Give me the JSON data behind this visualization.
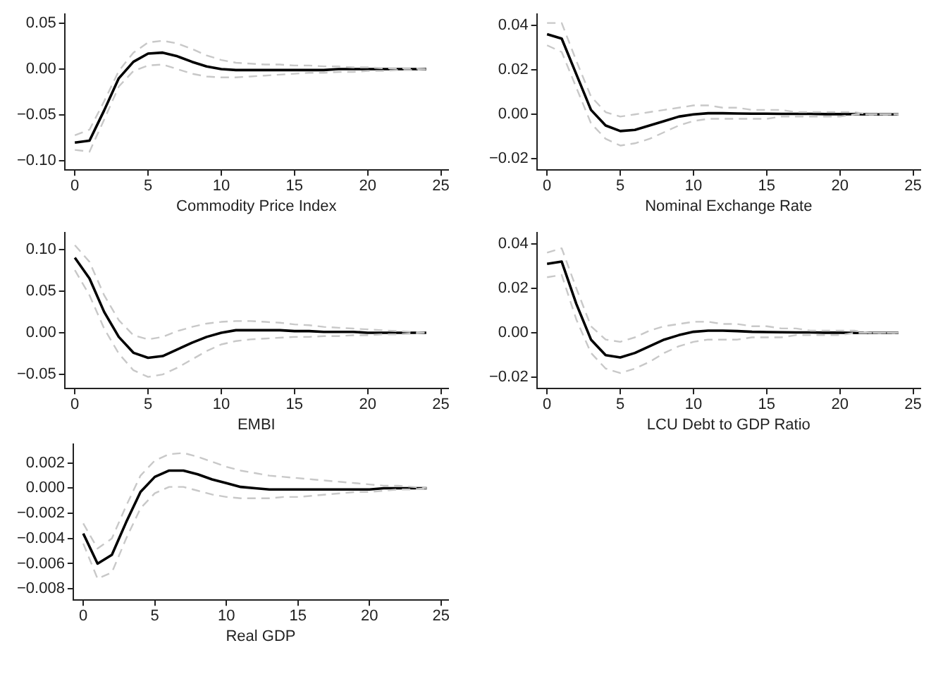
{
  "chart_data": [
    {
      "type": "line",
      "xlabel": "Commodity Price Index",
      "x": [
        0,
        1,
        2,
        3,
        4,
        5,
        6,
        7,
        8,
        9,
        10,
        11,
        12,
        13,
        14,
        15,
        16,
        17,
        18,
        19,
        20,
        21,
        22,
        23,
        24
      ],
      "xlim": [
        -0.7,
        25.5
      ],
      "xticks": [
        0,
        5,
        10,
        15,
        20,
        25
      ],
      "ylim": [
        -0.11,
        0.06
      ],
      "yticks": [
        {
          "value": -0.1,
          "label": "−0.10"
        },
        {
          "value": -0.05,
          "label": "−0.05"
        },
        {
          "value": 0,
          "label": "0.00"
        },
        {
          "value": 0.05,
          "label": "0.05"
        }
      ],
      "grid": false,
      "legend": false,
      "series": [
        {
          "color": "#c8c8c8",
          "line_style": "dashed",
          "values": [
            -0.088,
            -0.09,
            -0.055,
            -0.019,
            -0.002,
            0.004,
            0.005,
            0.0,
            -0.005,
            -0.008,
            -0.009,
            -0.009,
            -0.008,
            -0.007,
            -0.006,
            -0.005,
            -0.004,
            -0.004,
            -0.003,
            -0.003,
            -0.002,
            -0.002,
            -0.001,
            -0.001,
            0.0
          ]
        },
        {
          "color": "#c8c8c8",
          "line_style": "dashed",
          "values": [
            -0.072,
            -0.066,
            -0.035,
            -0.002,
            0.018,
            0.029,
            0.031,
            0.028,
            0.022,
            0.015,
            0.01,
            0.007,
            0.006,
            0.005,
            0.005,
            0.004,
            0.004,
            0.003,
            0.003,
            0.002,
            0.002,
            0.001,
            0.001,
            0.001,
            0.0
          ]
        },
        {
          "color": "#000000",
          "values": [
            -0.08,
            -0.078,
            -0.045,
            -0.01,
            0.008,
            0.017,
            0.018,
            0.014,
            0.008,
            0.003,
            0.0,
            -0.001,
            -0.001,
            -0.001,
            -0.001,
            -0.001,
            -0.001,
            -0.001,
            0,
            0,
            0,
            0,
            0,
            0,
            0
          ]
        }
      ]
    },
    {
      "type": "line",
      "xlabel": "Nominal Exchange Rate",
      "x": [
        0,
        1,
        2,
        3,
        4,
        5,
        6,
        7,
        8,
        9,
        10,
        11,
        12,
        13,
        14,
        15,
        16,
        17,
        18,
        19,
        20,
        21,
        22,
        23,
        24
      ],
      "xlim": [
        -0.7,
        25.5
      ],
      "xticks": [
        0,
        5,
        10,
        15,
        20,
        25
      ],
      "ylim": [
        -0.025,
        0.045
      ],
      "yticks": [
        {
          "value": -0.02,
          "label": "−0.02"
        },
        {
          "value": 0,
          "label": "0.00"
        },
        {
          "value": 0.02,
          "label": "0.02"
        },
        {
          "value": 0.04,
          "label": "0.04"
        }
      ],
      "grid": false,
      "legend": false,
      "series": [
        {
          "color": "#c8c8c8",
          "line_style": "dashed",
          "values": [
            0.031,
            0.028,
            0.012,
            -0.004,
            -0.011,
            -0.014,
            -0.013,
            -0.011,
            -0.008,
            -0.005,
            -0.003,
            -0.002,
            -0.002,
            -0.002,
            -0.002,
            -0.002,
            -0.001,
            -0.001,
            -0.001,
            -0.001,
            -0.001,
            0,
            0,
            0,
            0
          ]
        },
        {
          "color": "#c8c8c8",
          "line_style": "dashed",
          "values": [
            0.041,
            0.041,
            0.024,
            0.008,
            0.001,
            -0.001,
            0.0,
            0.001,
            0.002,
            0.003,
            0.004,
            0.004,
            0.003,
            0.003,
            0.002,
            0.002,
            0.002,
            0.001,
            0.001,
            0.001,
            0.001,
            0.001,
            0,
            0,
            0
          ]
        },
        {
          "color": "#000000",
          "values": [
            0.036,
            0.034,
            0.018,
            0.002,
            -0.005,
            -0.0075,
            -0.007,
            -0.005,
            -0.003,
            -0.001,
            0.0,
            0.0005,
            0.0005,
            0.0004,
            0.0003,
            0.0003,
            0.0002,
            0.0002,
            0.0002,
            0.0001,
            0.0001,
            0.0001,
            0,
            0,
            0
          ]
        }
      ]
    },
    {
      "type": "line",
      "xlabel": "EMBI",
      "x": [
        0,
        1,
        2,
        3,
        4,
        5,
        6,
        7,
        8,
        9,
        10,
        11,
        12,
        13,
        14,
        15,
        16,
        17,
        18,
        19,
        20,
        21,
        22,
        23,
        24
      ],
      "xlim": [
        -0.7,
        25.5
      ],
      "xticks": [
        0,
        5,
        10,
        15,
        20,
        25
      ],
      "ylim": [
        -0.067,
        0.12
      ],
      "yticks": [
        {
          "value": -0.05,
          "label": "−0.05"
        },
        {
          "value": 0,
          "label": "0.00"
        },
        {
          "value": 0.05,
          "label": "0.05"
        },
        {
          "value": 0.1,
          "label": "0.10"
        }
      ],
      "grid": false,
      "legend": false,
      "series": [
        {
          "color": "#c8c8c8",
          "line_style": "dashed",
          "values": [
            0.075,
            0.045,
            0.005,
            -0.025,
            -0.045,
            -0.053,
            -0.05,
            -0.042,
            -0.032,
            -0.022,
            -0.014,
            -0.01,
            -0.008,
            -0.007,
            -0.006,
            -0.005,
            -0.005,
            -0.004,
            -0.004,
            -0.003,
            -0.003,
            -0.002,
            -0.002,
            -0.001,
            0.0
          ]
        },
        {
          "color": "#c8c8c8",
          "line_style": "dashed",
          "values": [
            0.105,
            0.085,
            0.045,
            0.015,
            -0.003,
            -0.008,
            -0.005,
            0.002,
            0.007,
            0.011,
            0.013,
            0.014,
            0.014,
            0.013,
            0.012,
            0.01,
            0.009,
            0.007,
            0.006,
            0.005,
            0.004,
            0.003,
            0.002,
            0.001,
            0.0
          ]
        },
        {
          "color": "#000000",
          "values": [
            0.09,
            0.065,
            0.025,
            -0.005,
            -0.024,
            -0.03,
            -0.028,
            -0.02,
            -0.012,
            -0.005,
            0.0,
            0.003,
            0.003,
            0.003,
            0.003,
            0.002,
            0.002,
            0.001,
            0.001,
            0.001,
            0.0,
            0,
            0,
            0,
            0
          ]
        }
      ]
    },
    {
      "type": "line",
      "xlabel": "LCU Debt to GDP Ratio",
      "x": [
        0,
        1,
        2,
        3,
        4,
        5,
        6,
        7,
        8,
        9,
        10,
        11,
        12,
        13,
        14,
        15,
        16,
        17,
        18,
        19,
        20,
        21,
        22,
        23,
        24
      ],
      "xlim": [
        -0.7,
        25.5
      ],
      "xticks": [
        0,
        5,
        10,
        15,
        20,
        25
      ],
      "ylim": [
        -0.025,
        0.045
      ],
      "yticks": [
        {
          "value": -0.02,
          "label": "−0.02"
        },
        {
          "value": 0,
          "label": "0.00"
        },
        {
          "value": 0.02,
          "label": "0.02"
        },
        {
          "value": 0.04,
          "label": "0.04"
        }
      ],
      "grid": false,
      "legend": false,
      "series": [
        {
          "color": "#c8c8c8",
          "line_style": "dashed",
          "values": [
            0.025,
            0.026,
            0.006,
            -0.009,
            -0.016,
            -0.018,
            -0.016,
            -0.013,
            -0.009,
            -0.006,
            -0.004,
            -0.003,
            -0.003,
            -0.003,
            -0.002,
            -0.002,
            -0.002,
            -0.001,
            -0.001,
            -0.001,
            -0.001,
            0,
            0,
            0,
            0
          ]
        },
        {
          "color": "#c8c8c8",
          "line_style": "dashed",
          "values": [
            0.036,
            0.038,
            0.02,
            0.003,
            -0.003,
            -0.004,
            -0.002,
            0.001,
            0.003,
            0.004,
            0.005,
            0.005,
            0.004,
            0.004,
            0.003,
            0.003,
            0.002,
            0.002,
            0.001,
            0.001,
            0.001,
            0.001,
            0,
            0,
            0
          ]
        },
        {
          "color": "#000000",
          "values": [
            0.031,
            0.032,
            0.013,
            -0.003,
            -0.01,
            -0.011,
            -0.009,
            -0.006,
            -0.003,
            -0.001,
            0.0005,
            0.001,
            0.001,
            0.0008,
            0.0005,
            0.0004,
            0.0003,
            0.0002,
            0.0002,
            0.0001,
            0.0001,
            0,
            0,
            0,
            0
          ]
        }
      ]
    },
    {
      "type": "line",
      "xlabel": "Real GDP",
      "x": [
        0,
        1,
        2,
        3,
        4,
        5,
        6,
        7,
        8,
        9,
        10,
        11,
        12,
        13,
        14,
        15,
        16,
        17,
        18,
        19,
        20,
        21,
        22,
        23,
        24
      ],
      "xlim": [
        -0.7,
        25.5
      ],
      "xticks": [
        0,
        5,
        10,
        15,
        20,
        25
      ],
      "ylim": [
        -0.0089,
        0.0035
      ],
      "yticks": [
        {
          "value": -0.008,
          "label": "−0.008"
        },
        {
          "value": -0.006,
          "label": "−0.006"
        },
        {
          "value": -0.004,
          "label": "−0.004"
        },
        {
          "value": -0.002,
          "label": "−0.002"
        },
        {
          "value": 0,
          "label": "0.000"
        },
        {
          "value": 0.002,
          "label": "0.002"
        }
      ],
      "grid": false,
      "legend": false,
      "series": [
        {
          "color": "#c8c8c8",
          "line_style": "dashed",
          "values": [
            -0.0044,
            -0.0072,
            -0.0067,
            -0.004,
            -0.0016,
            -0.0004,
            0.0001,
            0.0001,
            -0.0002,
            -0.0005,
            -0.0007,
            -0.0008,
            -0.0008,
            -0.0008,
            -0.0007,
            -0.0007,
            -0.0006,
            -0.0005,
            -0.0004,
            -0.0003,
            -0.0003,
            -0.0002,
            -0.0001,
            -0.0001,
            0
          ]
        },
        {
          "color": "#c8c8c8",
          "line_style": "dashed",
          "values": [
            -0.0028,
            -0.0048,
            -0.004,
            -0.0014,
            0.001,
            0.0022,
            0.0027,
            0.0028,
            0.0025,
            0.0021,
            0.0017,
            0.0014,
            0.0012,
            0.001,
            0.0009,
            0.0008,
            0.0007,
            0.0006,
            0.0005,
            0.0004,
            0.0003,
            0.0002,
            0.0002,
            0.0001,
            0.0
          ]
        },
        {
          "color": "#000000",
          "values": [
            -0.0036,
            -0.006,
            -0.0053,
            -0.0027,
            -0.0003,
            0.0009,
            0.0014,
            0.0014,
            0.0011,
            0.0007,
            0.0004,
            0.0001,
            0.0,
            -0.0001,
            -0.0001,
            -0.0001,
            -0.0001,
            -0.0001,
            -0.0001,
            -0.0001,
            -0.0001,
            0,
            0,
            0,
            0
          ]
        }
      ]
    }
  ]
}
